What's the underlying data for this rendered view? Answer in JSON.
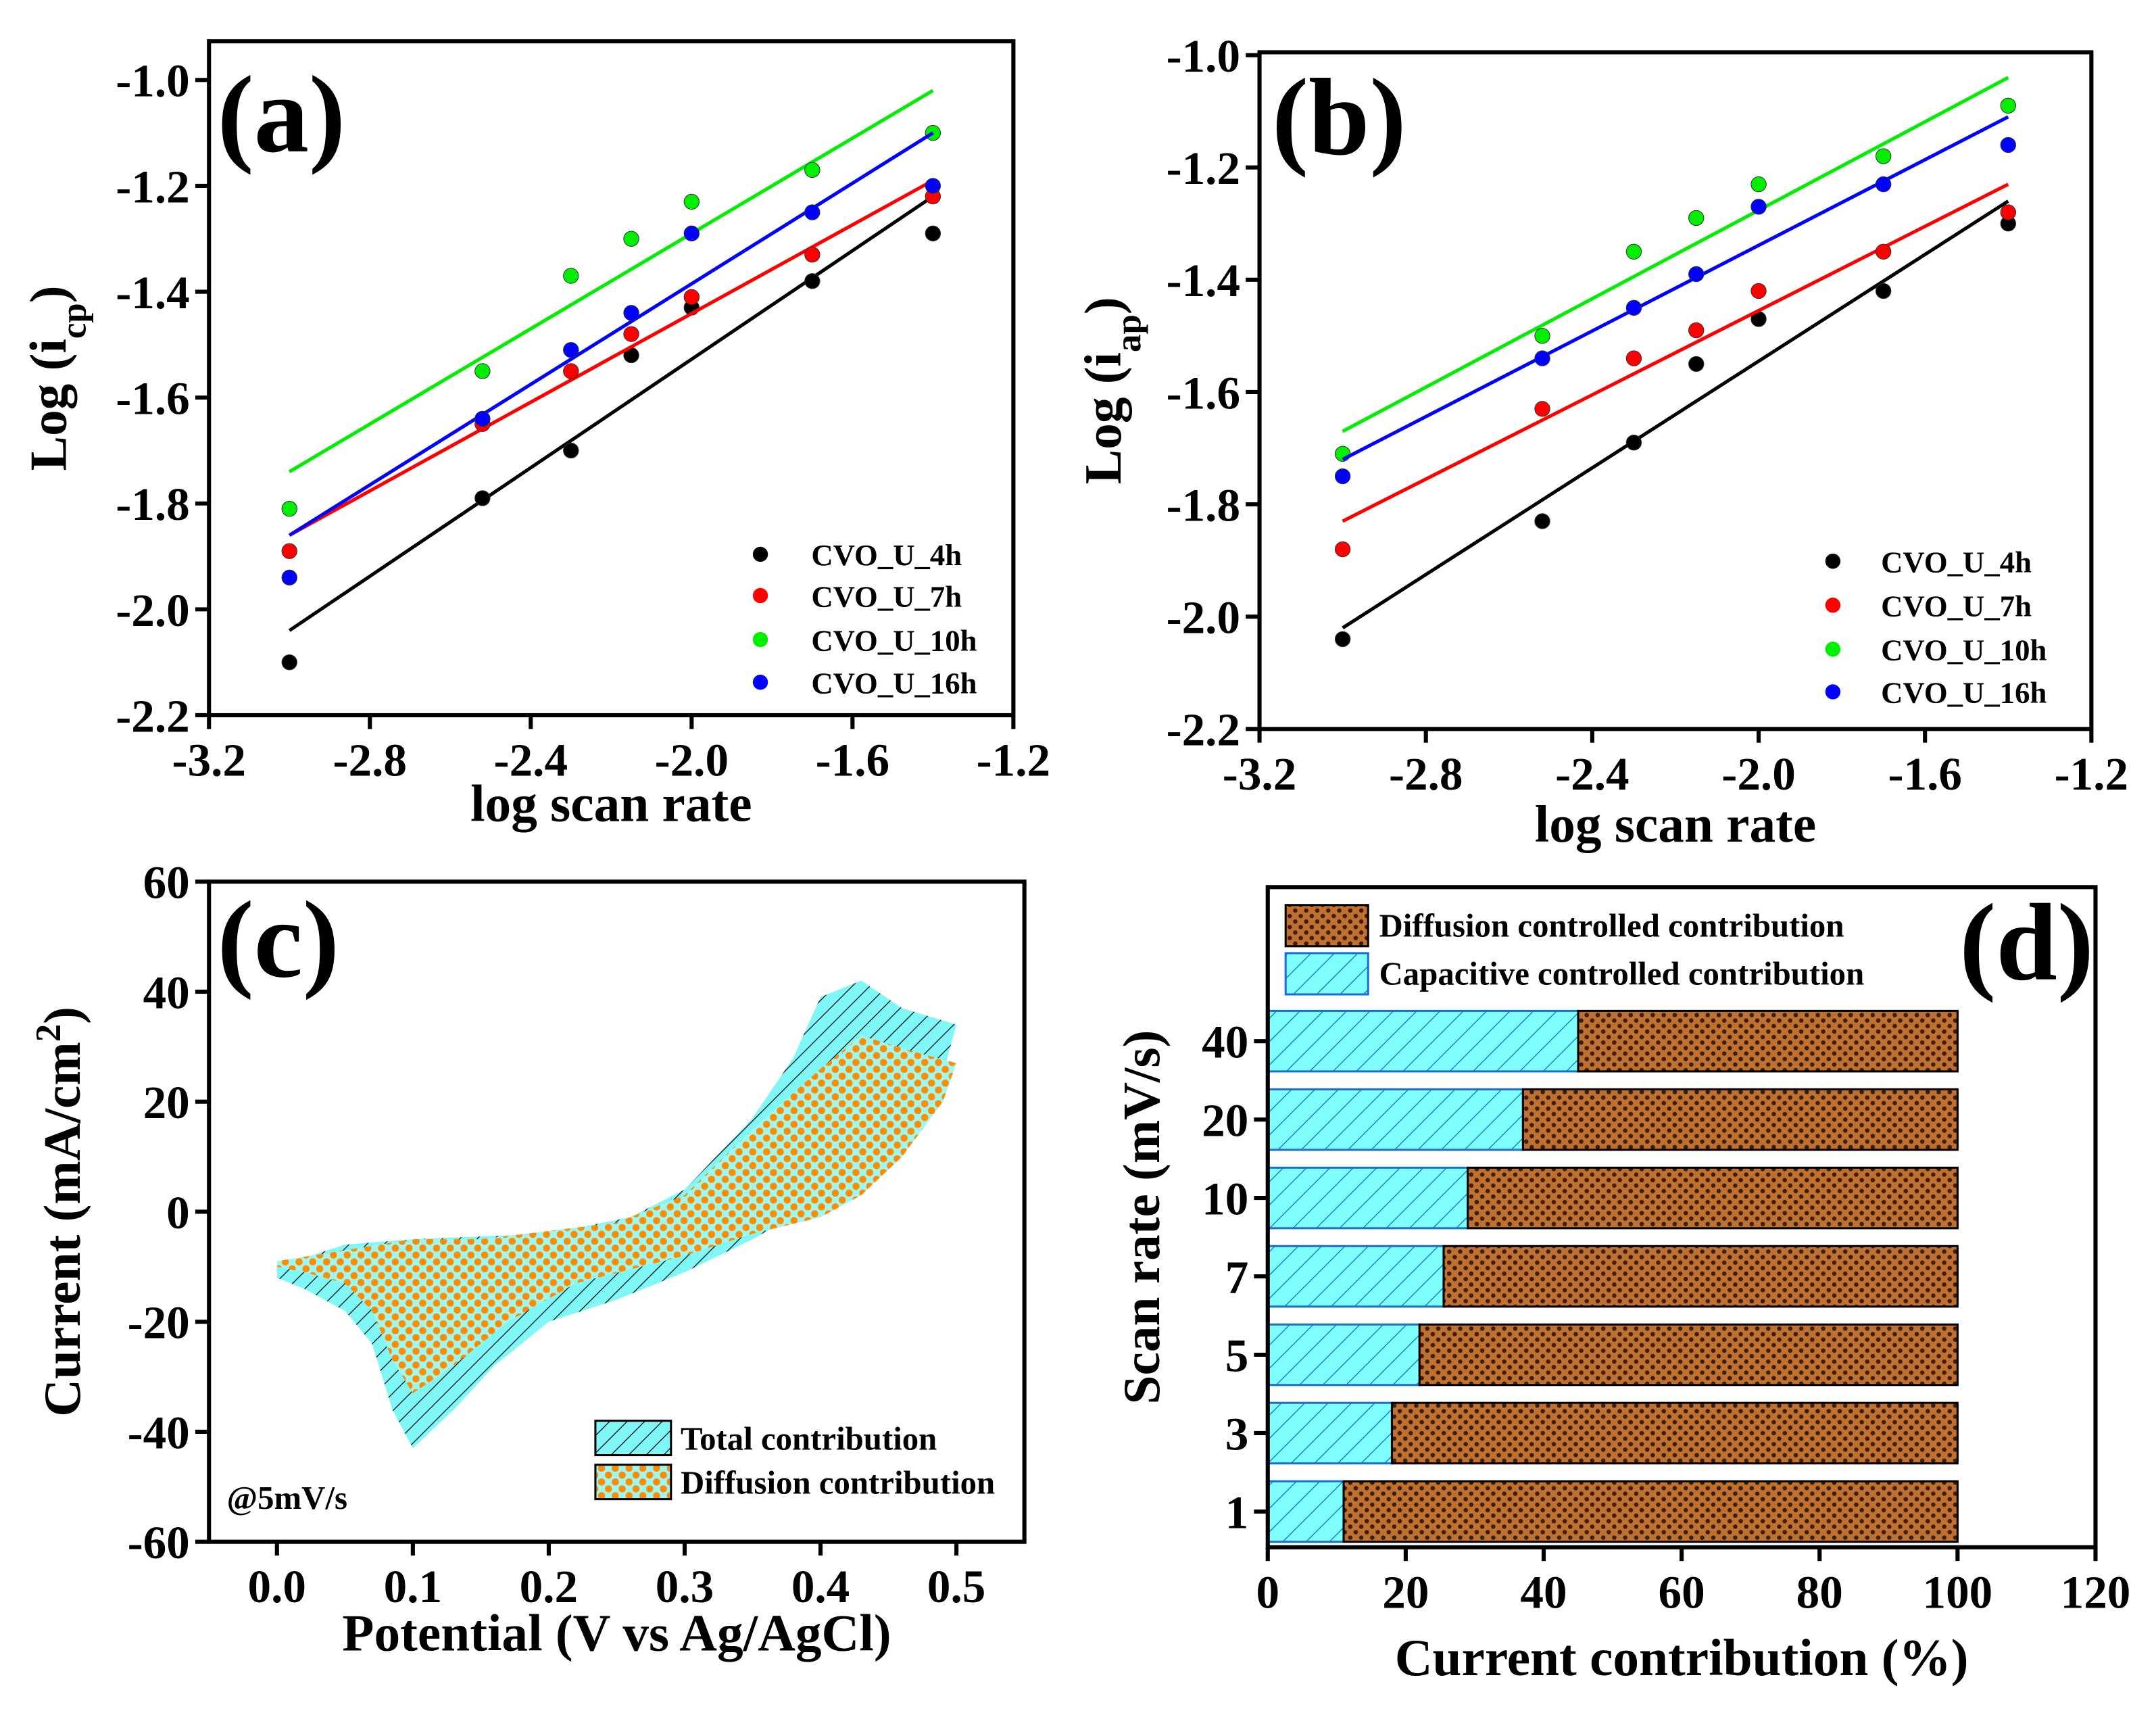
{
  "chart_data": [
    {
      "panel": "a",
      "type": "scatter",
      "label": "(a)",
      "xlabel": "log scan rate",
      "ylabel": {
        "main": "Log (i",
        "sub": "cp",
        "end": ")"
      },
      "xlim": [
        -3.2,
        -1.2
      ],
      "ylim": [
        -2.2,
        -1.0
      ],
      "xticks": [
        -3.2,
        -2.8,
        -2.4,
        -2.0,
        -1.6,
        -1.2
      ],
      "xtick_labels": [
        "-3.2",
        "-2.8",
        "-2.4",
        "-2.0",
        "-1.6",
        "-1.2"
      ],
      "yticks": [
        -2.2,
        -2.0,
        -1.8,
        -1.6,
        -1.4,
        -1.2,
        -1.0
      ],
      "ytick_labels": [
        "-2.2",
        "-2.0",
        "-1.8",
        "-1.6",
        "-1.4",
        "-1.2",
        "-1.0"
      ],
      "legend_position": "bottom-right",
      "x": [
        -3.0,
        -2.52,
        -2.3,
        -2.15,
        -2.0,
        -1.7,
        -1.4
      ],
      "series": [
        {
          "name": "CVO_U_4h",
          "color": "#000000",
          "values": [
            -2.1,
            -1.79,
            -1.7,
            -1.52,
            -1.43,
            -1.38,
            -1.29
          ],
          "fit": [
            [
              -3.0,
              -2.04
            ],
            [
              -1.4,
              -1.22
            ]
          ]
        },
        {
          "name": "CVO_U_7h",
          "color": "#ff0000",
          "values": [
            -1.89,
            -1.65,
            -1.55,
            -1.48,
            -1.41,
            -1.33,
            -1.22
          ],
          "fit": [
            [
              -3.0,
              -1.86
            ],
            [
              -1.4,
              -1.19
            ]
          ]
        },
        {
          "name": "CVO_U_10h",
          "color": "#00ee00",
          "values": [
            -1.81,
            -1.55,
            -1.37,
            -1.3,
            -1.23,
            -1.17,
            -1.1
          ],
          "fit": [
            [
              -3.0,
              -1.74
            ],
            [
              -1.4,
              -1.02
            ]
          ]
        },
        {
          "name": "CVO_U_16h",
          "color": "#0000ff",
          "values": [
            -1.94,
            -1.64,
            -1.51,
            -1.44,
            -1.29,
            -1.25,
            -1.2
          ],
          "fit": [
            [
              -3.0,
              -1.86
            ],
            [
              -1.4,
              -1.1
            ]
          ]
        }
      ]
    },
    {
      "panel": "b",
      "type": "scatter",
      "label": "(b)",
      "xlabel": "log scan rate",
      "ylabel": {
        "main": "Log (i",
        "sub": "ap",
        "end": ")"
      },
      "xlim": [
        -3.2,
        -1.2
      ],
      "ylim": [
        -2.2,
        -1.0
      ],
      "xticks": [
        -3.2,
        -2.8,
        -2.4,
        -2.0,
        -1.6,
        -1.2
      ],
      "xtick_labels": [
        "-3.2",
        "-2.8",
        "-2.4",
        "-2.0",
        "-1.6",
        "-1.2"
      ],
      "yticks": [
        -2.2,
        -2.0,
        -1.8,
        -1.6,
        -1.4,
        -1.2,
        -1.0
      ],
      "ytick_labels": [
        "-2.2",
        "-2.0",
        "-1.8",
        "-1.6",
        "-1.4",
        "-1.2",
        "-1.0"
      ],
      "legend_position": "bottom-right",
      "x": [
        -3.0,
        -2.52,
        -2.3,
        -2.15,
        -2.0,
        -1.7,
        -1.4
      ],
      "series": [
        {
          "name": "CVO_U_4h",
          "color": "#000000",
          "values": [
            -2.04,
            -1.83,
            -1.69,
            -1.55,
            -1.47,
            -1.42,
            -1.3
          ],
          "fit": [
            [
              -3.0,
              -2.02
            ],
            [
              -1.4,
              -1.26
            ]
          ]
        },
        {
          "name": "CVO_U_7h",
          "color": "#ff0000",
          "values": [
            -1.88,
            -1.63,
            -1.54,
            -1.49,
            -1.42,
            -1.35,
            -1.28
          ],
          "fit": [
            [
              -3.0,
              -1.83
            ],
            [
              -1.4,
              -1.23
            ]
          ]
        },
        {
          "name": "CVO_U_10h",
          "color": "#00ee00",
          "values": [
            -1.71,
            -1.5,
            -1.35,
            -1.29,
            -1.23,
            -1.18,
            -1.09
          ],
          "fit": [
            [
              -3.0,
              -1.67
            ],
            [
              -1.4,
              -1.04
            ]
          ]
        },
        {
          "name": "CVO_U_16h",
          "color": "#0000ff",
          "values": [
            -1.75,
            -1.54,
            -1.45,
            -1.39,
            -1.27,
            -1.23,
            -1.16
          ],
          "fit": [
            [
              -3.0,
              -1.72
            ],
            [
              -1.4,
              -1.11
            ]
          ]
        }
      ]
    },
    {
      "panel": "c",
      "type": "area",
      "label": "(c)",
      "xlabel": "Potential (V vs Ag/AgCl)",
      "ylabel": {
        "main": "Current (mA/cm",
        "sup": "2",
        "end": ")"
      },
      "xlim": [
        -0.05,
        0.55
      ],
      "ylim": [
        -60,
        60
      ],
      "xticks": [
        0.0,
        0.1,
        0.2,
        0.3,
        0.4,
        0.5
      ],
      "xtick_labels": [
        "0.0",
        "0.1",
        "0.2",
        "0.3",
        "0.4",
        "0.5"
      ],
      "yticks": [
        -60,
        -40,
        -20,
        0,
        20,
        40,
        60
      ],
      "ytick_labels": [
        "-60",
        "-40",
        "-20",
        "0",
        "20",
        "40",
        "60"
      ],
      "annotation": "@5mV/s",
      "legend_position": "bottom-right",
      "series": [
        {
          "name": "Total contribution",
          "color": "#7ff7f7",
          "points": [
            [
              0,
              -10
            ],
            [
              0.05,
              -6
            ],
            [
              0.1,
              -5
            ],
            [
              0.2,
              -4
            ],
            [
              0.26,
              -1
            ],
            [
              0.3,
              4
            ],
            [
              0.35,
              17
            ],
            [
              0.38,
              28
            ],
            [
              0.4,
              39
            ],
            [
              0.43,
              42
            ],
            [
              0.46,
              37
            ],
            [
              0.5,
              34
            ],
            [
              0.49,
              25
            ],
            [
              0.46,
              14
            ],
            [
              0.43,
              7
            ],
            [
              0.4,
              2
            ],
            [
              0.35,
              -5
            ],
            [
              0.3,
              -11
            ],
            [
              0.25,
              -16
            ],
            [
              0.2,
              -20
            ],
            [
              0.16,
              -28
            ],
            [
              0.13,
              -36
            ],
            [
              0.1,
              -43
            ],
            [
              0.085,
              -36
            ],
            [
              0.07,
              -24
            ],
            [
              0.05,
              -18
            ],
            [
              0.02,
              -14
            ],
            [
              0,
              -12
            ]
          ]
        },
        {
          "name": "Diffusion contribution",
          "color": "#ff8c00",
          "points": [
            [
              0,
              -9
            ],
            [
              0.05,
              -7
            ],
            [
              0.1,
              -5
            ],
            [
              0.15,
              -5
            ],
            [
              0.25,
              -2
            ],
            [
              0.3,
              3
            ],
            [
              0.35,
              15
            ],
            [
              0.4,
              26
            ],
            [
              0.43,
              32
            ],
            [
              0.47,
              29
            ],
            [
              0.5,
              27
            ],
            [
              0.49,
              20
            ],
            [
              0.46,
              10
            ],
            [
              0.43,
              3
            ],
            [
              0.4,
              -1
            ],
            [
              0.35,
              -4
            ],
            [
              0.3,
              -8
            ],
            [
              0.22,
              -13
            ],
            [
              0.17,
              -20
            ],
            [
              0.13,
              -28
            ],
            [
              0.1,
              -33
            ],
            [
              0.085,
              -27
            ],
            [
              0.07,
              -18
            ],
            [
              0.05,
              -13
            ],
            [
              0.02,
              -11
            ],
            [
              0,
              -10
            ]
          ]
        }
      ]
    },
    {
      "panel": "d",
      "type": "bar",
      "orientation": "horizontal",
      "stacked": true,
      "label": "(d)",
      "xlabel": "Current contribution (%)",
      "ylabel": "Scan rate (mV/s)",
      "xlim": [
        0,
        120
      ],
      "xticks": [
        0,
        20,
        40,
        60,
        80,
        100,
        120
      ],
      "xtick_labels": [
        "0",
        "20",
        "40",
        "60",
        "80",
        "100",
        "120"
      ],
      "categories": [
        "40",
        "20",
        "10",
        "7",
        "5",
        "3",
        "1"
      ],
      "legend_position": "top",
      "series": [
        {
          "name": "Capacitive controlled contribution",
          "color": "#80ffff",
          "values": [
            45,
            37,
            29,
            25.5,
            22,
            18,
            11
          ]
        },
        {
          "name": "Diffusion controlled contribution",
          "color": "#b5651d",
          "values": [
            55,
            63,
            71,
            74.5,
            78,
            82,
            89
          ]
        }
      ]
    }
  ]
}
